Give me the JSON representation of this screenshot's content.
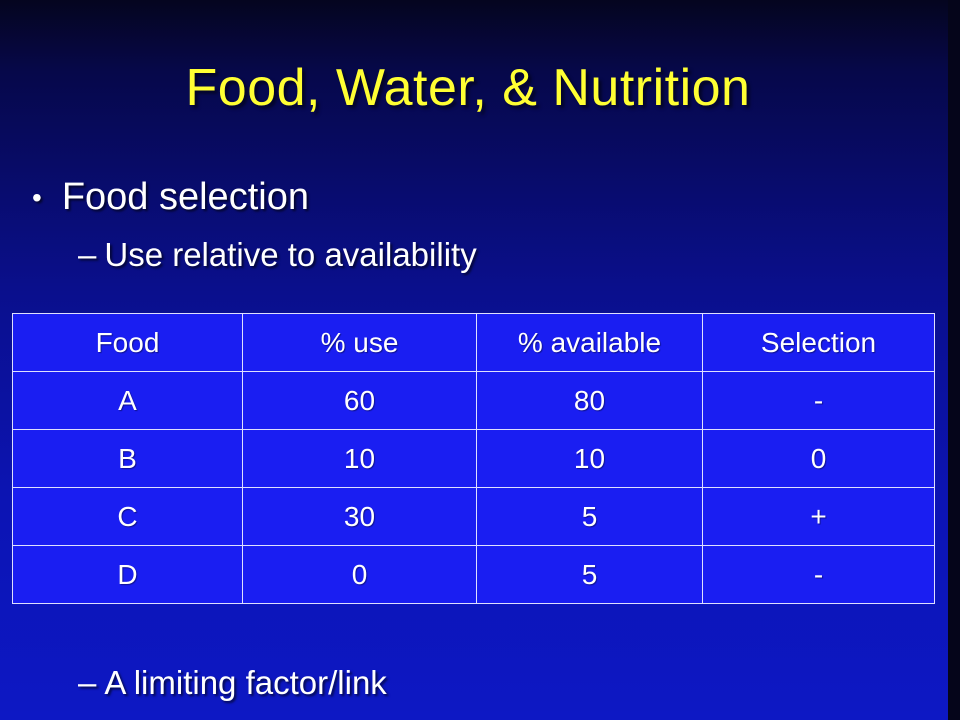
{
  "slide": {
    "title": "Food, Water, & Nutrition",
    "bullet": "Food selection",
    "bullet_symbol": "•",
    "sub_dash": "–",
    "subitems": [
      "Use relative to availability",
      "A limiting factor/link"
    ]
  },
  "table": {
    "headers": [
      "Food",
      "% use",
      "% available",
      "Selection"
    ],
    "rows": [
      [
        "A",
        "60",
        "80",
        "-"
      ],
      [
        "B",
        "10",
        "10",
        "0"
      ],
      [
        "C",
        "30",
        "5",
        "+"
      ],
      [
        "D",
        "0",
        "5",
        "-"
      ]
    ]
  },
  "colors": {
    "title": "#ffff33",
    "background_top": "#05051f",
    "background_bottom": "#0d18c4",
    "table_fill": "#1a1ef2",
    "text": "#ffffff"
  }
}
